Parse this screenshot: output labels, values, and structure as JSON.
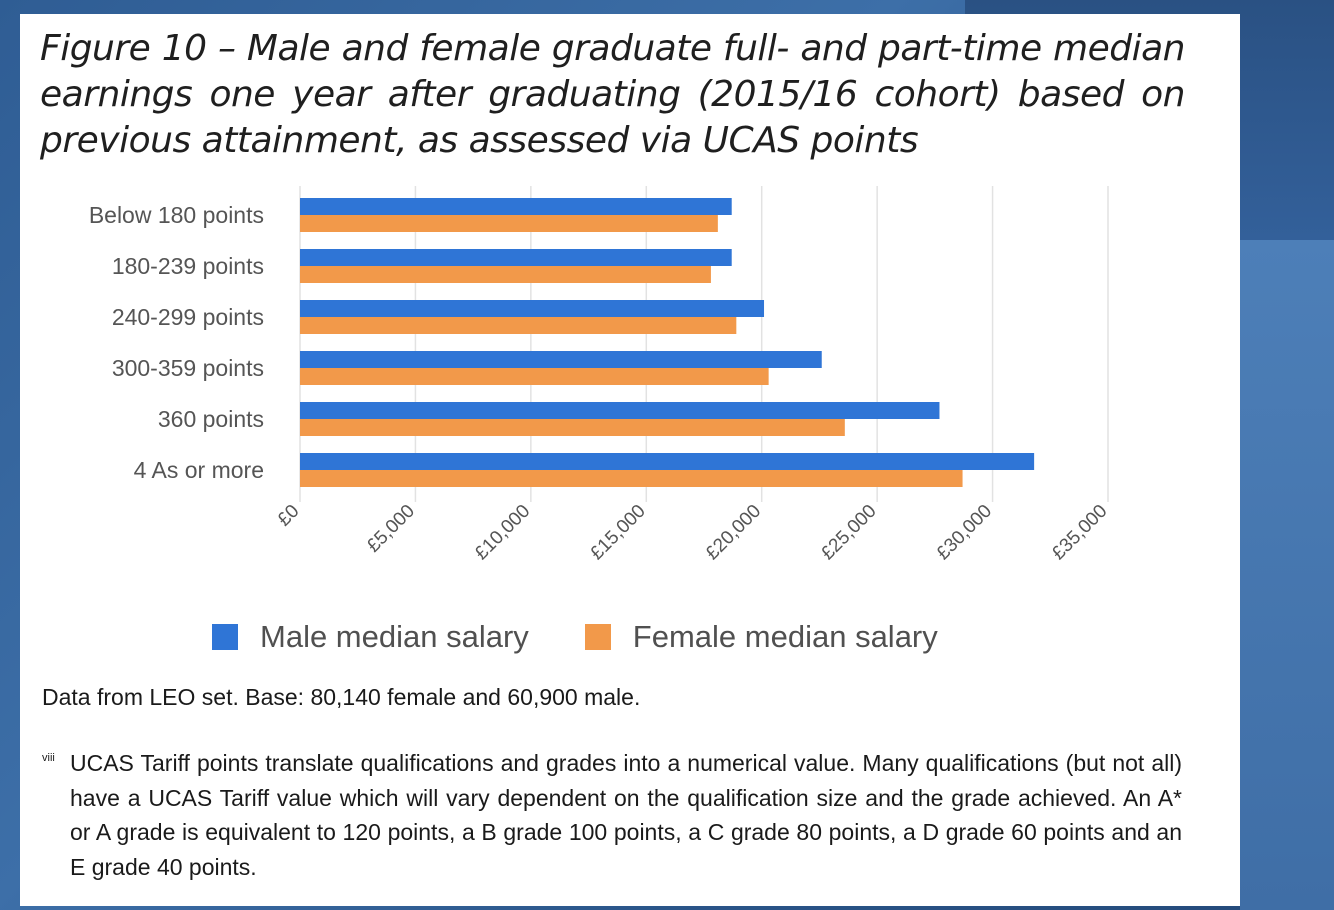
{
  "title": "Figure 10 – Male and female graduate full- and part-time median earnings one year after graduating (2015/16 cohort) based on previous attainment, as assessed via UCAS points",
  "chart_data": {
    "type": "bar",
    "orientation": "horizontal",
    "categories": [
      "Below 180 points",
      "180-239 points",
      "240-299 points",
      "300-359 points",
      "360 points",
      "4 As or more"
    ],
    "series": [
      {
        "name": "Male median salary",
        "color": "#2f75d6",
        "values": [
          18700,
          18700,
          20100,
          22600,
          27700,
          31800
        ]
      },
      {
        "name": "Female median salary",
        "color": "#f2994a",
        "values": [
          18100,
          17800,
          18900,
          20300,
          23600,
          28700
        ]
      }
    ],
    "x_ticks": [
      "£0",
      "£5,000",
      "£10,000",
      "£15,000",
      "£20,000",
      "£25,000",
      "£30,000",
      "£35,000"
    ],
    "xlim": [
      0,
      35000
    ],
    "grid": true,
    "legend_position": "bottom"
  },
  "legend": {
    "male": "Male median salary",
    "female": "Female median salary"
  },
  "source": "Data from LEO set. Base: 80,140 female and 60,900 male.",
  "footnote": {
    "marker": "viii",
    "text": "UCAS Tariff points translate qualifications and grades into a numerical value. Many qualifications (but not all) have a UCAS Tariff value which will vary dependent on the qualification size and the grade achieved. An A* or A grade is equivalent to 120 points, a B grade 100 points, a C grade 80 points, a D grade 60 points and an E grade 40 points."
  }
}
